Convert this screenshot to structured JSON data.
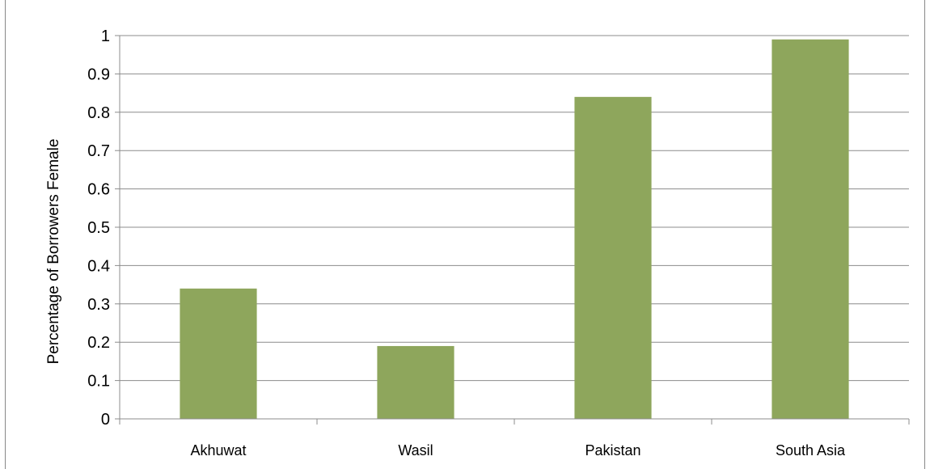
{
  "chart_data": {
    "type": "bar",
    "categories": [
      "Akhuwat",
      "Wasil",
      "Pakistan",
      "South Asia"
    ],
    "values": [
      0.34,
      0.19,
      0.84,
      0.99
    ],
    "title": "",
    "xlabel": "",
    "ylabel": "Percentage of Borrowers Female",
    "ylim": [
      0,
      1
    ],
    "yticks": [
      "0",
      "0.1",
      "0.2",
      "0.3",
      "0.4",
      "0.5",
      "0.6",
      "0.7",
      "0.8",
      "0.9",
      "1"
    ],
    "grid": true,
    "legend": "none",
    "bar_color": "#8ea65c",
    "grid_color": "#8c8c8c"
  }
}
